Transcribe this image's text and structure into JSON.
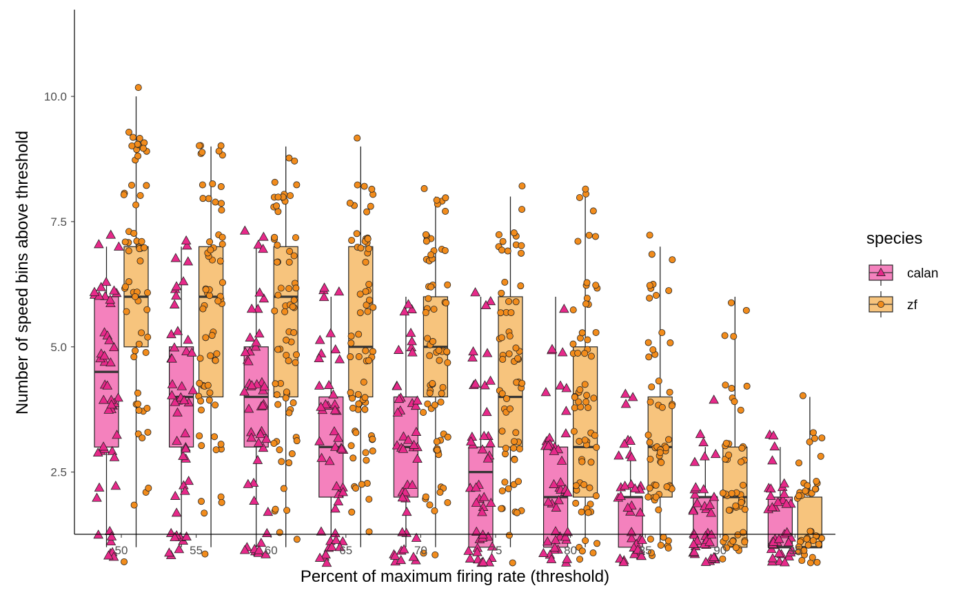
{
  "chart_data": {
    "type": "boxplot",
    "xlabel": "Percent of maximum firing rate (threshold)",
    "ylabel": "Number of speed bins above threshold",
    "categories": [
      "50",
      "55",
      "60",
      "65",
      "70",
      "75",
      "80",
      "85",
      "90",
      "95"
    ],
    "y_ticks": [
      2.5,
      5.0,
      7.5,
      10.0
    ],
    "y_tick_labels": [
      "2.5",
      "5.0",
      "7.5",
      "10.0"
    ],
    "ylim": [
      0.2,
      10.8
    ],
    "grid": false,
    "legend": {
      "title": "species",
      "position": "right",
      "entries": [
        {
          "label": "calan",
          "series": "calan"
        },
        {
          "label": "zf",
          "series": "zf"
        }
      ]
    },
    "series": [
      {
        "name": "calan",
        "marker": "triangle",
        "box_fill": "#f481bd",
        "point_fill": "#e7298a",
        "boxes": [
          {
            "x": "50",
            "q1": 3,
            "median": 4.5,
            "q3": 6,
            "whisker_low": 1,
            "whisker_high": 7
          },
          {
            "x": "55",
            "q1": 3,
            "median": 4,
            "q3": 5,
            "whisker_low": 1,
            "whisker_high": 7
          },
          {
            "x": "60",
            "q1": 3,
            "median": 4,
            "q3": 5,
            "whisker_low": 1,
            "whisker_high": 7
          },
          {
            "x": "65",
            "q1": 2,
            "median": 3,
            "q3": 4,
            "whisker_low": 1,
            "whisker_high": 6
          },
          {
            "x": "70",
            "q1": 2,
            "median": 3,
            "q3": 4,
            "whisker_low": 1,
            "whisker_high": 6
          },
          {
            "x": "75",
            "q1": 1,
            "median": 2.5,
            "q3": 3,
            "whisker_low": 1,
            "whisker_high": 6
          },
          {
            "x": "80",
            "q1": 1,
            "median": 2,
            "q3": 3,
            "whisker_low": 1,
            "whisker_high": 6
          },
          {
            "x": "85",
            "q1": 1,
            "median": 2,
            "q3": 2,
            "whisker_low": 1,
            "whisker_high": 3
          },
          {
            "x": "90",
            "q1": 1,
            "median": 2,
            "q3": 2,
            "whisker_low": 1,
            "whisker_high": 3
          },
          {
            "x": "95",
            "q1": 1,
            "median": 1,
            "q3": 2,
            "whisker_low": 1,
            "whisker_high": 3
          }
        ],
        "points": [
          {
            "x": "50",
            "counts": {
              "1": 8,
              "2": 3,
              "3": 7,
              "4": 10,
              "5": 9,
              "6": 10,
              "7": 3
            }
          },
          {
            "x": "55",
            "counts": {
              "1": 9,
              "2": 5,
              "3": 6,
              "4": 10,
              "5": 8,
              "6": 5,
              "7": 4
            }
          },
          {
            "x": "60",
            "counts": {
              "1": 10,
              "2": 4,
              "3": 8,
              "4": 12,
              "5": 8,
              "6": 4,
              "7": 4
            }
          },
          {
            "x": "65",
            "counts": {
              "1": 12,
              "2": 6,
              "3": 9,
              "4": 10,
              "5": 6,
              "6": 4
            }
          },
          {
            "x": "70",
            "counts": {
              "1": 11,
              "2": 7,
              "3": 10,
              "4": 9,
              "5": 5,
              "6": 3
            }
          },
          {
            "x": "75",
            "counts": {
              "1": 16,
              "2": 9,
              "3": 9,
              "4": 5,
              "5": 3,
              "6": 3
            }
          },
          {
            "x": "80",
            "counts": {
              "1": 15,
              "2": 12,
              "3": 10,
              "4": 4,
              "5": 3,
              "6": 1
            }
          },
          {
            "x": "85",
            "counts": {
              "1": 16,
              "2": 12,
              "3": 6,
              "4": 3
            }
          },
          {
            "x": "90",
            "counts": {
              "1": 22,
              "2": 12,
              "3": 5,
              "4": 1
            }
          },
          {
            "x": "95",
            "counts": {
              "1": 22,
              "2": 14,
              "3": 4
            }
          }
        ]
      },
      {
        "name": "zf",
        "marker": "circle",
        "box_fill": "#f7c47d",
        "point_fill": "#f28c1c",
        "boxes": [
          {
            "x": "50",
            "q1": 5,
            "median": 6,
            "q3": 7,
            "whisker_low": 1,
            "whisker_high": 10
          },
          {
            "x": "55",
            "q1": 4,
            "median": 6,
            "q3": 7,
            "whisker_low": 1,
            "whisker_high": 9
          },
          {
            "x": "60",
            "q1": 4,
            "median": 6,
            "q3": 7,
            "whisker_low": 1,
            "whisker_high": 9
          },
          {
            "x": "65",
            "q1": 4,
            "median": 5,
            "q3": 7,
            "whisker_low": 1,
            "whisker_high": 9
          },
          {
            "x": "70",
            "q1": 4,
            "median": 5,
            "q3": 6,
            "whisker_low": 1,
            "whisker_high": 8
          },
          {
            "x": "75",
            "q1": 3,
            "median": 4,
            "q3": 6,
            "whisker_low": 1,
            "whisker_high": 8
          },
          {
            "x": "80",
            "q1": 2,
            "median": 3,
            "q3": 5,
            "whisker_low": 1,
            "whisker_high": 8
          },
          {
            "x": "85",
            "q1": 2,
            "median": 3,
            "q3": 4,
            "whisker_low": 1,
            "whisker_high": 7
          },
          {
            "x": "90",
            "q1": 1,
            "median": 2,
            "q3": 3,
            "whisker_low": 1,
            "whisker_high": 6
          },
          {
            "x": "95",
            "q1": 1,
            "median": 1,
            "q3": 2,
            "whisker_low": 1,
            "whisker_high": 4
          }
        ],
        "points": [
          {
            "x": "50",
            "counts": {
              "1": 1,
              "2": 3,
              "3": 3,
              "4": 6,
              "5": 6,
              "6": 10,
              "7": 12,
              "8": 6,
              "9": 12,
              "10": 1
            }
          },
          {
            "x": "55",
            "counts": {
              "1": 1,
              "2": 4,
              "3": 6,
              "4": 10,
              "5": 8,
              "6": 12,
              "7": 10,
              "8": 8,
              "9": 7
            }
          },
          {
            "x": "60",
            "counts": {
              "1": 2,
              "2": 4,
              "3": 8,
              "4": 10,
              "5": 10,
              "6": 12,
              "7": 10,
              "8": 12,
              "9": 2
            }
          },
          {
            "x": "65",
            "counts": {
              "1": 1,
              "2": 6,
              "3": 10,
              "4": 12,
              "5": 10,
              "6": 10,
              "7": 12,
              "8": 8,
              "9": 1
            }
          },
          {
            "x": "70",
            "counts": {
              "1": 2,
              "2": 8,
              "3": 9,
              "4": 12,
              "5": 12,
              "6": 10,
              "7": 12,
              "8": 6
            }
          },
          {
            "x": "75",
            "counts": {
              "1": 2,
              "2": 10,
              "3": 10,
              "4": 10,
              "5": 12,
              "6": 8,
              "7": 10,
              "8": 2
            }
          },
          {
            "x": "80",
            "counts": {
              "1": 6,
              "2": 12,
              "3": 12,
              "4": 12,
              "5": 10,
              "6": 8,
              "7": 3,
              "8": 4
            }
          },
          {
            "x": "85",
            "counts": {
              "1": 8,
              "2": 14,
              "3": 14,
              "4": 8,
              "5": 6,
              "6": 6,
              "7": 3
            }
          },
          {
            "x": "90",
            "counts": {
              "1": 14,
              "2": 16,
              "3": 10,
              "4": 6,
              "5": 2,
              "6": 2
            }
          },
          {
            "x": "95",
            "counts": {
              "1": 20,
              "2": 14,
              "3": 6,
              "4": 1
            }
          }
        ]
      }
    ]
  }
}
